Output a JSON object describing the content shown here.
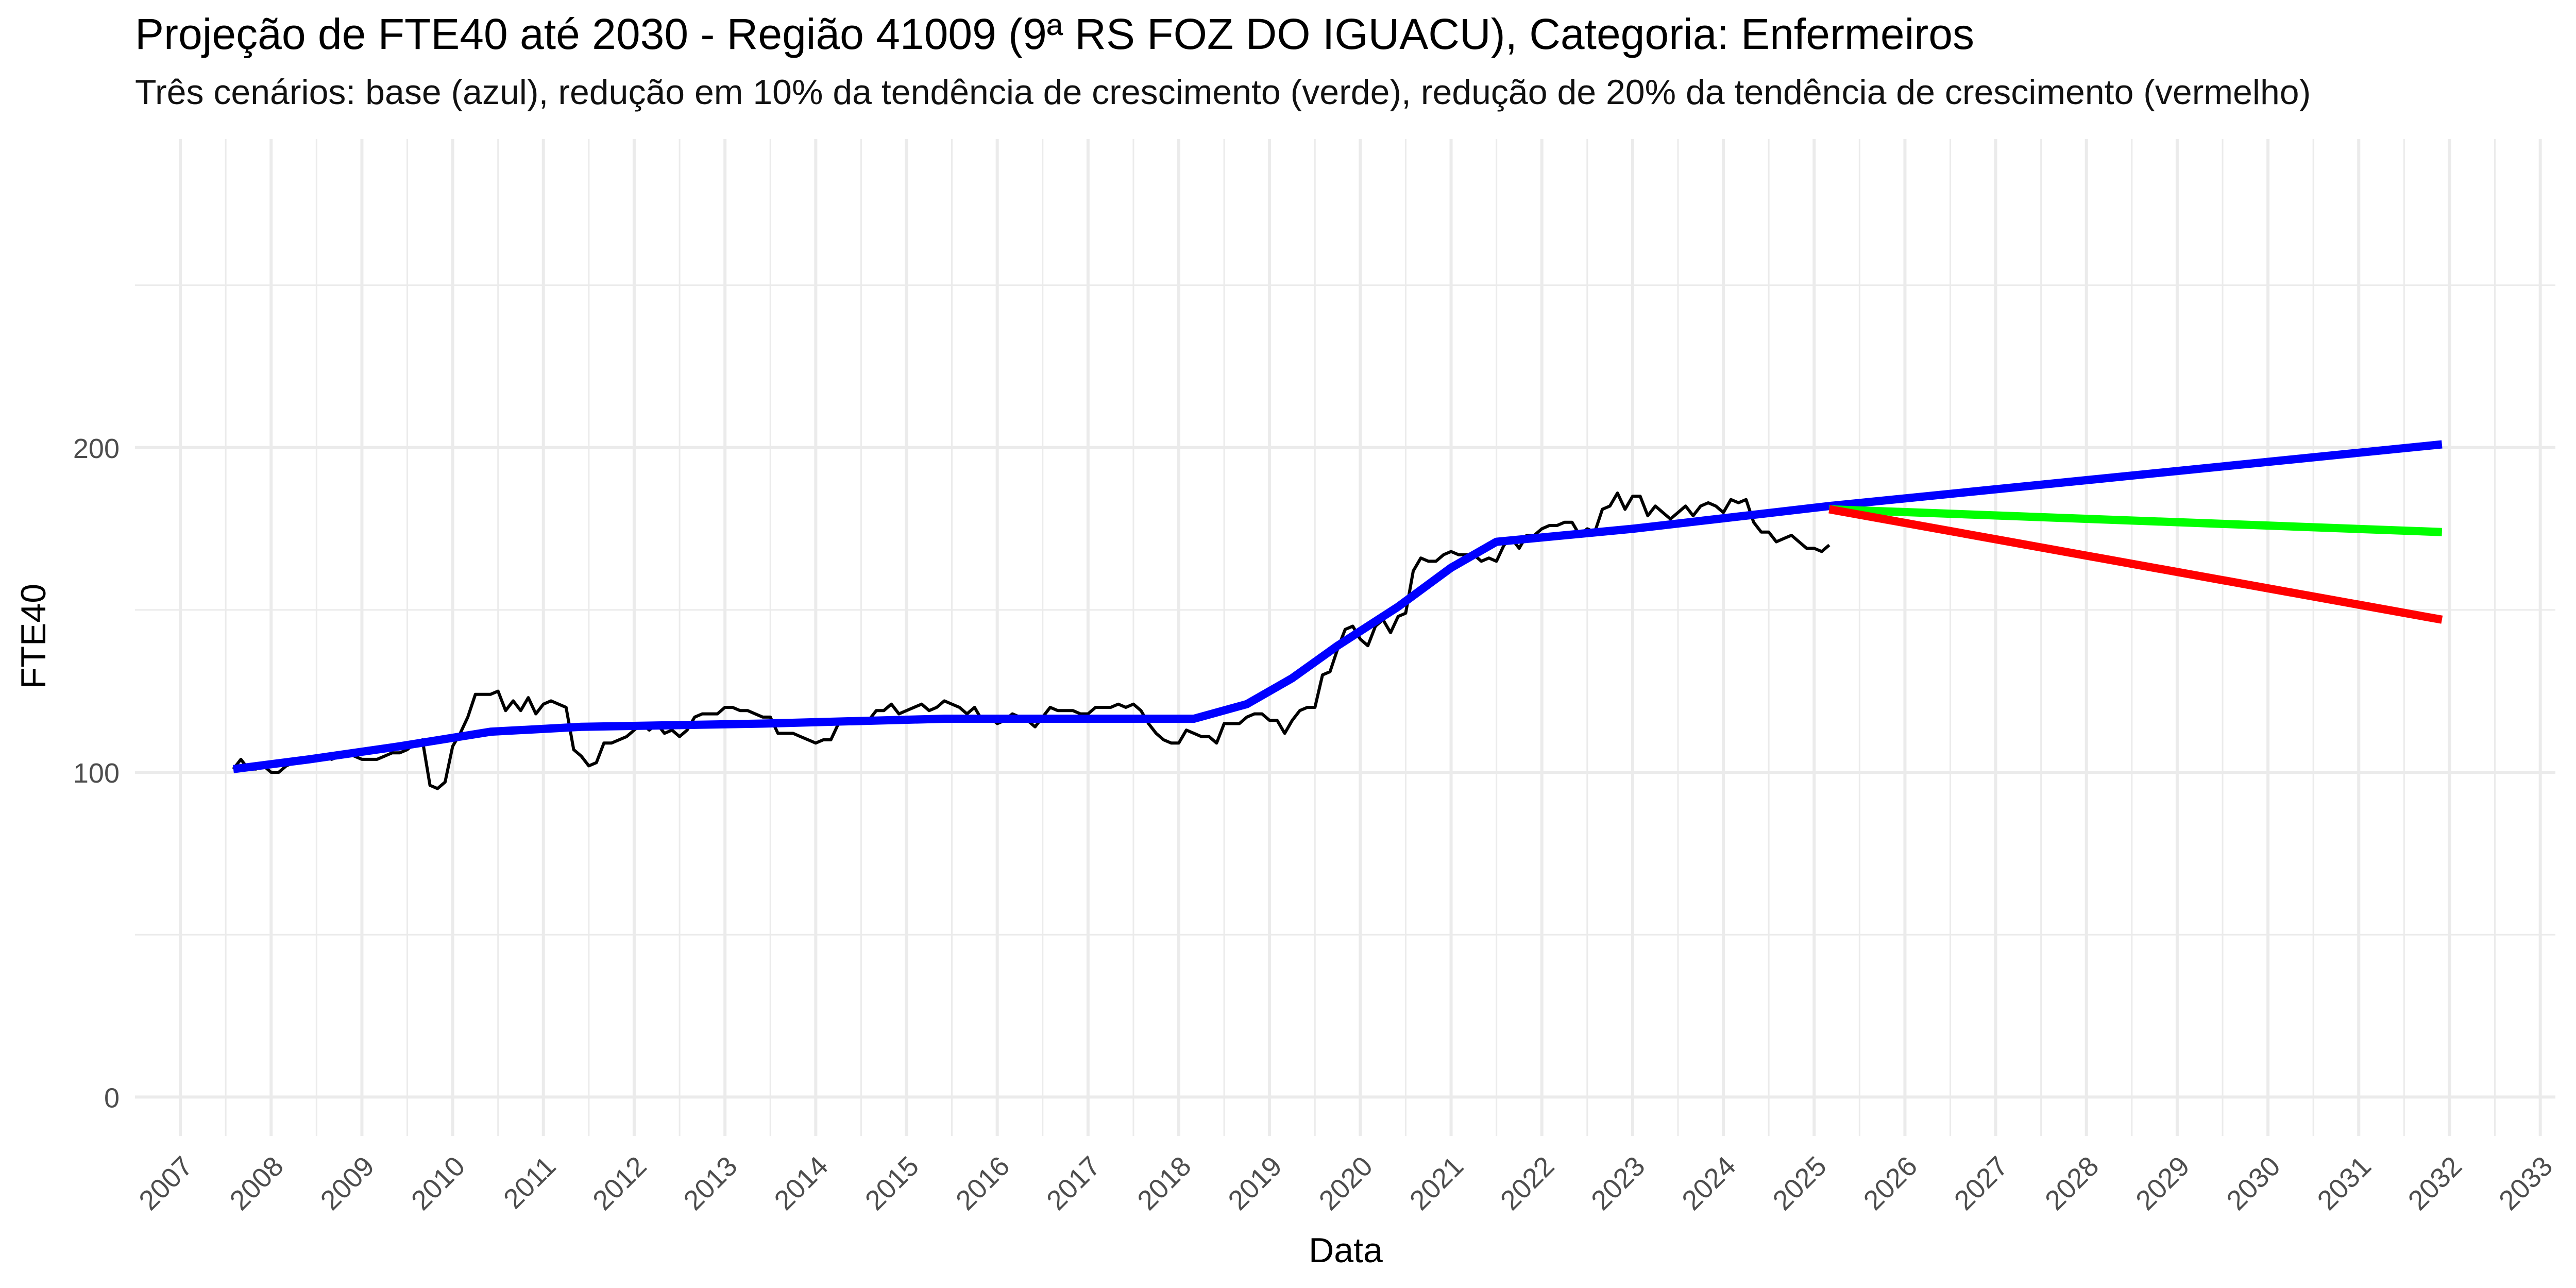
{
  "chart_data": {
    "type": "line",
    "title": "Projeção de FTE40 até 2030 - Região 41009 (9ª RS FOZ DO IGUACU), Categoria: Enfermeiros",
    "subtitle": "Três cenários: base (azul), redução em 10% da tendência de crescimento (verde), redução de 20% da tendência de crescimento (vermelho)",
    "xlabel": "Data",
    "ylabel": "FTE40",
    "xlim": [
      "2006-07-01",
      "2033-03-01"
    ],
    "ylim": [
      -12,
      295
    ],
    "y_ticks": [
      0,
      100,
      200
    ],
    "x_ticks": [
      "2007",
      "2008",
      "2009",
      "2010",
      "2011",
      "2012",
      "2013",
      "2014",
      "2015",
      "2016",
      "2017",
      "2018",
      "2019",
      "2020",
      "2021",
      "2022",
      "2023",
      "2024",
      "2025",
      "2026",
      "2027",
      "2028",
      "2029",
      "2030",
      "2031",
      "2032",
      "2033"
    ],
    "grid": true,
    "legend": "none",
    "series": [
      {
        "color": "#000000",
        "points": [
          [
            "2007-08-01",
            101
          ],
          [
            "2007-09-01",
            104
          ],
          [
            "2007-10-01",
            101
          ],
          [
            "2007-11-01",
            101
          ],
          [
            "2007-12-01",
            102
          ],
          [
            "2008-01-01",
            100
          ],
          [
            "2008-02-01",
            100
          ],
          [
            "2008-03-01",
            102
          ],
          [
            "2008-04-01",
            103
          ],
          [
            "2008-05-01",
            103
          ],
          [
            "2008-06-01",
            104
          ],
          [
            "2008-07-01",
            104
          ],
          [
            "2008-08-01",
            105
          ],
          [
            "2008-09-01",
            104
          ],
          [
            "2008-10-01",
            105
          ],
          [
            "2008-11-01",
            106
          ],
          [
            "2008-12-01",
            105
          ],
          [
            "2009-01-01",
            104
          ],
          [
            "2009-02-01",
            104
          ],
          [
            "2009-03-01",
            104
          ],
          [
            "2009-04-01",
            105
          ],
          [
            "2009-05-01",
            106
          ],
          [
            "2009-06-01",
            106
          ],
          [
            "2009-07-01",
            107
          ],
          [
            "2009-08-01",
            109
          ],
          [
            "2009-09-01",
            110
          ],
          [
            "2009-10-01",
            96
          ],
          [
            "2009-11-01",
            95
          ],
          [
            "2009-12-01",
            97
          ],
          [
            "2010-01-01",
            108
          ],
          [
            "2010-02-01",
            112
          ],
          [
            "2010-03-01",
            117
          ],
          [
            "2010-04-01",
            124
          ],
          [
            "2010-05-01",
            124
          ],
          [
            "2010-06-01",
            124
          ],
          [
            "2010-07-01",
            125
          ],
          [
            "2010-08-01",
            119
          ],
          [
            "2010-09-01",
            122
          ],
          [
            "2010-10-01",
            119
          ],
          [
            "2010-11-01",
            123
          ],
          [
            "2010-12-01",
            118
          ],
          [
            "2011-01-01",
            121
          ],
          [
            "2011-02-01",
            122
          ],
          [
            "2011-03-01",
            121
          ],
          [
            "2011-04-01",
            120
          ],
          [
            "2011-05-01",
            107
          ],
          [
            "2011-06-01",
            105
          ],
          [
            "2011-07-01",
            102
          ],
          [
            "2011-08-01",
            103
          ],
          [
            "2011-09-01",
            109
          ],
          [
            "2011-10-01",
            109
          ],
          [
            "2011-11-01",
            110
          ],
          [
            "2011-12-01",
            111
          ],
          [
            "2012-01-01",
            113
          ],
          [
            "2012-02-01",
            115
          ],
          [
            "2012-03-01",
            113
          ],
          [
            "2012-04-01",
            115
          ],
          [
            "2012-05-01",
            112
          ],
          [
            "2012-06-01",
            113
          ],
          [
            "2012-07-01",
            111
          ],
          [
            "2012-08-01",
            113
          ],
          [
            "2012-09-01",
            117
          ],
          [
            "2012-10-01",
            118
          ],
          [
            "2012-11-01",
            118
          ],
          [
            "2012-12-01",
            118
          ],
          [
            "2013-01-01",
            120
          ],
          [
            "2013-02-01",
            120
          ],
          [
            "2013-03-01",
            119
          ],
          [
            "2013-04-01",
            119
          ],
          [
            "2013-05-01",
            118
          ],
          [
            "2013-06-01",
            117
          ],
          [
            "2013-07-01",
            117
          ],
          [
            "2013-08-01",
            112
          ],
          [
            "2013-09-01",
            112
          ],
          [
            "2013-10-01",
            112
          ],
          [
            "2013-11-01",
            111
          ],
          [
            "2013-12-01",
            110
          ],
          [
            "2014-01-01",
            109
          ],
          [
            "2014-02-01",
            110
          ],
          [
            "2014-03-01",
            110
          ],
          [
            "2014-04-01",
            115
          ],
          [
            "2014-05-01",
            116
          ],
          [
            "2014-06-01",
            115
          ],
          [
            "2014-07-01",
            116
          ],
          [
            "2014-08-01",
            116
          ],
          [
            "2014-09-01",
            119
          ],
          [
            "2014-10-01",
            119
          ],
          [
            "2014-11-01",
            121
          ],
          [
            "2014-12-01",
            118
          ],
          [
            "2015-01-01",
            119
          ],
          [
            "2015-02-01",
            120
          ],
          [
            "2015-03-01",
            121
          ],
          [
            "2015-04-01",
            119
          ],
          [
            "2015-05-01",
            120
          ],
          [
            "2015-06-01",
            122
          ],
          [
            "2015-07-01",
            121
          ],
          [
            "2015-08-01",
            120
          ],
          [
            "2015-09-01",
            118
          ],
          [
            "2015-10-01",
            120
          ],
          [
            "2015-11-01",
            116
          ],
          [
            "2015-12-01",
            117
          ],
          [
            "2016-01-01",
            115
          ],
          [
            "2016-02-01",
            116
          ],
          [
            "2016-03-01",
            118
          ],
          [
            "2016-04-01",
            117
          ],
          [
            "2016-05-01",
            116
          ],
          [
            "2016-06-01",
            114
          ],
          [
            "2016-07-01",
            117
          ],
          [
            "2016-08-01",
            120
          ],
          [
            "2016-09-01",
            119
          ],
          [
            "2016-10-01",
            119
          ],
          [
            "2016-11-01",
            119
          ],
          [
            "2016-12-01",
            118
          ],
          [
            "2017-01-01",
            118
          ],
          [
            "2017-02-01",
            120
          ],
          [
            "2017-03-01",
            120
          ],
          [
            "2017-04-01",
            120
          ],
          [
            "2017-05-01",
            121
          ],
          [
            "2017-06-01",
            120
          ],
          [
            "2017-07-01",
            121
          ],
          [
            "2017-08-01",
            119
          ],
          [
            "2017-09-01",
            115
          ],
          [
            "2017-10-01",
            112
          ],
          [
            "2017-11-01",
            110
          ],
          [
            "2017-12-01",
            109
          ],
          [
            "2018-01-01",
            109
          ],
          [
            "2018-02-01",
            113
          ],
          [
            "2018-03-01",
            112
          ],
          [
            "2018-04-01",
            111
          ],
          [
            "2018-05-01",
            111
          ],
          [
            "2018-06-01",
            109
          ],
          [
            "2018-07-01",
            115
          ],
          [
            "2018-08-01",
            115
          ],
          [
            "2018-09-01",
            115
          ],
          [
            "2018-10-01",
            117
          ],
          [
            "2018-11-01",
            118
          ],
          [
            "2018-12-01",
            118
          ],
          [
            "2019-01-01",
            116
          ],
          [
            "2019-02-01",
            116
          ],
          [
            "2019-03-01",
            112
          ],
          [
            "2019-04-01",
            116
          ],
          [
            "2019-05-01",
            119
          ],
          [
            "2019-06-01",
            120
          ],
          [
            "2019-07-01",
            120
          ],
          [
            "2019-08-01",
            130
          ],
          [
            "2019-09-01",
            131
          ],
          [
            "2019-10-01",
            138
          ],
          [
            "2019-11-01",
            144
          ],
          [
            "2019-12-01",
            145
          ],
          [
            "2020-01-01",
            141
          ],
          [
            "2020-02-01",
            139
          ],
          [
            "2020-03-01",
            145
          ],
          [
            "2020-04-01",
            147
          ],
          [
            "2020-05-01",
            143
          ],
          [
            "2020-06-01",
            148
          ],
          [
            "2020-07-01",
            149
          ],
          [
            "2020-08-01",
            162
          ],
          [
            "2020-09-01",
            166
          ],
          [
            "2020-10-01",
            165
          ],
          [
            "2020-11-01",
            165
          ],
          [
            "2020-12-01",
            167
          ],
          [
            "2021-01-01",
            168
          ],
          [
            "2021-02-01",
            167
          ],
          [
            "2021-03-01",
            167
          ],
          [
            "2021-04-01",
            167
          ],
          [
            "2021-05-01",
            165
          ],
          [
            "2021-06-01",
            166
          ],
          [
            "2021-07-01",
            165
          ],
          [
            "2021-08-01",
            170
          ],
          [
            "2021-09-01",
            172
          ],
          [
            "2021-10-01",
            169
          ],
          [
            "2021-11-01",
            173
          ],
          [
            "2021-12-01",
            173
          ],
          [
            "2022-01-01",
            175
          ],
          [
            "2022-02-01",
            176
          ],
          [
            "2022-03-01",
            176
          ],
          [
            "2022-04-01",
            177
          ],
          [
            "2022-05-01",
            177
          ],
          [
            "2022-06-01",
            173
          ],
          [
            "2022-07-01",
            175
          ],
          [
            "2022-08-01",
            174
          ],
          [
            "2022-09-01",
            181
          ],
          [
            "2022-10-01",
            182
          ],
          [
            "2022-11-01",
            186
          ],
          [
            "2022-12-01",
            181
          ],
          [
            "2023-01-01",
            185
          ],
          [
            "2023-02-01",
            185
          ],
          [
            "2023-03-01",
            179
          ],
          [
            "2023-04-01",
            182
          ],
          [
            "2023-05-01",
            180
          ],
          [
            "2023-06-01",
            178
          ],
          [
            "2023-07-01",
            180
          ],
          [
            "2023-08-01",
            182
          ],
          [
            "2023-09-01",
            179
          ],
          [
            "2023-10-01",
            182
          ],
          [
            "2023-11-01",
            183
          ],
          [
            "2023-12-01",
            182
          ],
          [
            "2024-01-01",
            180
          ],
          [
            "2024-02-01",
            184
          ],
          [
            "2024-03-01",
            183
          ],
          [
            "2024-04-01",
            184
          ],
          [
            "2024-05-01",
            177
          ],
          [
            "2024-06-01",
            174
          ],
          [
            "2024-07-01",
            174
          ],
          [
            "2024-08-01",
            171
          ],
          [
            "2024-09-01",
            172
          ],
          [
            "2024-10-01",
            173
          ],
          [
            "2024-11-01",
            171
          ],
          [
            "2024-12-01",
            169
          ],
          [
            "2025-01-01",
            169
          ],
          [
            "2025-02-01",
            168
          ],
          [
            "2025-03-01",
            170
          ]
        ]
      },
      {
        "color": "#0000ff",
        "points": [
          [
            "2007-08-01",
            101
          ],
          [
            "2008-06-01",
            104
          ],
          [
            "2009-06-01",
            108
          ],
          [
            "2010-06-01",
            112.5
          ],
          [
            "2011-06-01",
            114
          ],
          [
            "2013-06-01",
            115
          ],
          [
            "2015-06-01",
            116.5
          ],
          [
            "2018-03-01",
            116.5
          ],
          [
            "2018-10-01",
            121
          ],
          [
            "2019-04-01",
            129
          ],
          [
            "2019-10-01",
            139
          ],
          [
            "2020-06-01",
            151
          ],
          [
            "2021-01-01",
            163
          ],
          [
            "2021-07-01",
            171
          ],
          [
            "2023-01-01",
            175
          ],
          [
            "2025-03-01",
            182
          ],
          [
            "2031-12-01",
            201
          ]
        ]
      },
      {
        "color": "#00ff00",
        "points": [
          [
            "2025-03-01",
            181
          ],
          [
            "2031-12-01",
            174
          ]
        ]
      },
      {
        "color": "#ff0000",
        "points": [
          [
            "2025-03-01",
            181
          ],
          [
            "2031-12-01",
            147
          ]
        ]
      }
    ]
  }
}
